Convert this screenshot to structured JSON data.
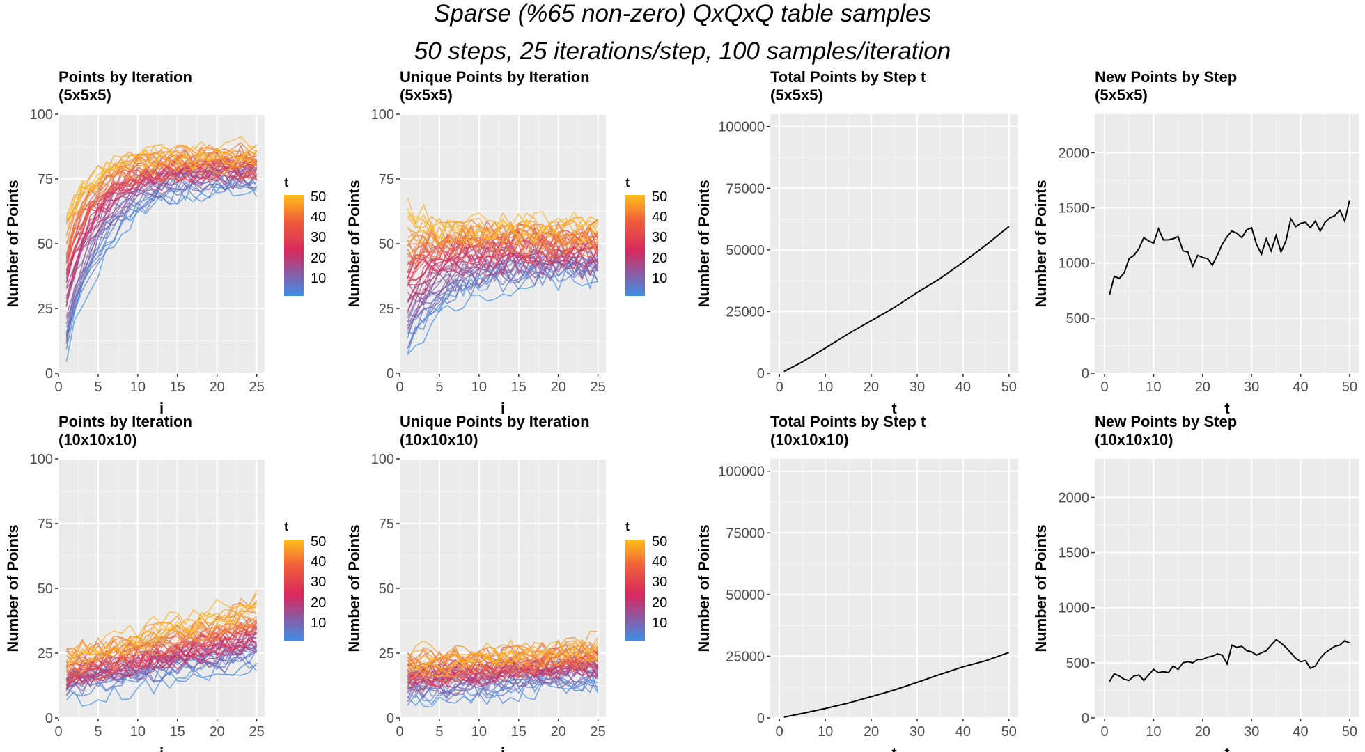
{
  "figure": {
    "title_line1": "Sparse (%65 non-zero) QxQxQ table samples",
    "title_line2": "50 steps, 25 iterations/step, 100 samples/iteration"
  },
  "colors": {
    "panel_bg": "#ebebeb",
    "grid": "#ffffff",
    "line": "#000000",
    "gradient_low": "#3f8ee6",
    "gradient_mid": "#d8285e",
    "gradient_high": "#ffbf1a"
  },
  "legend": {
    "title": "t",
    "labels": [
      "50",
      "40",
      "30",
      "20",
      "10"
    ]
  },
  "chart_data": [
    {
      "id": "p1",
      "type": "line",
      "multi_series": true,
      "title_line1": "Points by Iteration",
      "title_line2": "(5x5x5)",
      "xlabel": "i",
      "ylabel": "Number of Points",
      "xlim": [
        0,
        26
      ],
      "ylim": [
        0,
        100
      ],
      "xticks": [
        0,
        5,
        10,
        15,
        20,
        25
      ],
      "yticks": [
        0,
        25,
        50,
        75,
        100
      ],
      "series_color_by": "t",
      "series_count": 50,
      "x_range": [
        1,
        25
      ],
      "start_low_t": 10,
      "start_high_t": 62,
      "end_low_t": 74,
      "end_high_t": 85,
      "speed": 4.5,
      "noise": 4
    },
    {
      "id": "p2",
      "type": "line",
      "multi_series": true,
      "title_line1": "Unique Points by Iteration",
      "title_line2": "(5x5x5)",
      "xlabel": "i",
      "ylabel": "Number of Points",
      "xlim": [
        0,
        26
      ],
      "ylim": [
        0,
        100
      ],
      "xticks": [
        0,
        5,
        10,
        15,
        20,
        25
      ],
      "yticks": [
        0,
        25,
        50,
        75,
        100
      ],
      "series_color_by": "t",
      "series_count": 50,
      "x_range": [
        1,
        25
      ],
      "start_low_t": 10,
      "start_high_t": 62,
      "end_low_t": 40,
      "end_high_t": 57,
      "speed": 5,
      "noise": 5
    },
    {
      "id": "p3",
      "type": "line",
      "title_line1": "Total Points by Step t",
      "title_line2": "(5x5x5)",
      "xlabel": "t",
      "ylabel": "Number of Points",
      "xlim": [
        -2,
        52
      ],
      "ylim": [
        0,
        105000
      ],
      "xticks": [
        0,
        10,
        20,
        30,
        40,
        50
      ],
      "yticks": [
        0,
        25000,
        50000,
        75000,
        100000
      ],
      "x": [
        1,
        5,
        10,
        15,
        20,
        25,
        30,
        35,
        40,
        45,
        50
      ],
      "y": [
        700,
        4600,
        10200,
        16000,
        21300,
        26600,
        32700,
        38400,
        45000,
        52000,
        59500
      ]
    },
    {
      "id": "p4",
      "type": "line",
      "title_line1": "New Points by Step",
      "title_line2": "(5x5x5)",
      "xlabel": "t",
      "ylabel": "Number of Points",
      "xlim": [
        -2,
        52
      ],
      "ylim": [
        0,
        2350
      ],
      "xticks": [
        0,
        10,
        20,
        30,
        40,
        50
      ],
      "yticks": [
        0,
        500,
        1000,
        1500,
        2000
      ],
      "x": [
        1,
        2,
        3,
        4,
        5,
        6,
        7,
        8,
        9,
        10,
        11,
        12,
        13,
        14,
        15,
        16,
        17,
        18,
        19,
        20,
        21,
        22,
        23,
        24,
        25,
        26,
        27,
        28,
        29,
        30,
        31,
        32,
        33,
        34,
        35,
        36,
        37,
        38,
        39,
        40,
        41,
        42,
        43,
        44,
        45,
        46,
        47,
        48,
        49,
        50
      ],
      "y": [
        710,
        880,
        860,
        910,
        1040,
        1070,
        1130,
        1230,
        1200,
        1180,
        1310,
        1210,
        1210,
        1220,
        1240,
        1110,
        1100,
        970,
        1070,
        1050,
        1040,
        980,
        1070,
        1170,
        1240,
        1290,
        1270,
        1230,
        1300,
        1320,
        1170,
        1080,
        1220,
        1110,
        1250,
        1100,
        1200,
        1400,
        1330,
        1360,
        1370,
        1320,
        1380,
        1290,
        1370,
        1410,
        1430,
        1480,
        1380,
        1570
      ]
    },
    {
      "id": "p5",
      "type": "line",
      "multi_series": true,
      "title_line1": "Points by Iteration",
      "title_line2": "(10x10x10)",
      "xlabel": "i",
      "ylabel": "Number of Points",
      "xlim": [
        0,
        26
      ],
      "ylim": [
        0,
        100
      ],
      "xticks": [
        0,
        5,
        10,
        15,
        20,
        25
      ],
      "yticks": [
        0,
        25,
        50,
        75,
        100
      ],
      "series_color_by": "t",
      "series_count": 50,
      "x_range": [
        1,
        25
      ],
      "start_low_t": 11,
      "start_high_t": 24,
      "end_low_t": 22,
      "end_high_t": 44,
      "speed": 0,
      "noise": 4
    },
    {
      "id": "p6",
      "type": "line",
      "multi_series": true,
      "title_line1": "Unique Points by Iteration",
      "title_line2": "(10x10x10)",
      "xlabel": "i",
      "ylabel": "Number of Points",
      "xlim": [
        0,
        26
      ],
      "ylim": [
        0,
        100
      ],
      "xticks": [
        0,
        5,
        10,
        15,
        20,
        25
      ],
      "yticks": [
        0,
        25,
        50,
        75,
        100
      ],
      "series_color_by": "t",
      "series_count": 50,
      "x_range": [
        1,
        25
      ],
      "start_low_t": 10,
      "start_high_t": 22,
      "end_low_t": 16,
      "end_high_t": 28,
      "speed": 0,
      "noise": 4
    },
    {
      "id": "p7",
      "type": "line",
      "title_line1": "Total Points by Step t",
      "title_line2": "(10x10x10)",
      "xlabel": "t",
      "ylabel": "Number of Points",
      "xlim": [
        -2,
        52
      ],
      "ylim": [
        0,
        105000
      ],
      "xticks": [
        0,
        10,
        20,
        30,
        40,
        50
      ],
      "yticks": [
        0,
        25000,
        50000,
        75000,
        100000
      ],
      "x": [
        1,
        5,
        10,
        15,
        20,
        25,
        30,
        35,
        40,
        45,
        50
      ],
      "y": [
        300,
        1800,
        3800,
        6000,
        8600,
        11300,
        14400,
        17600,
        20700,
        23200,
        26500
      ]
    },
    {
      "id": "p8",
      "type": "line",
      "title_line1": "New Points by Step",
      "title_line2": "(10x10x10)",
      "xlabel": "t",
      "ylabel": "Number of Points",
      "xlim": [
        -2,
        52
      ],
      "ylim": [
        0,
        2350
      ],
      "xticks": [
        0,
        10,
        20,
        30,
        40,
        50
      ],
      "yticks": [
        0,
        500,
        1000,
        1500,
        2000
      ],
      "x": [
        1,
        2,
        3,
        4,
        5,
        6,
        7,
        8,
        9,
        10,
        11,
        12,
        13,
        14,
        15,
        16,
        17,
        18,
        19,
        20,
        21,
        22,
        23,
        24,
        25,
        26,
        27,
        28,
        29,
        30,
        31,
        32,
        33,
        34,
        35,
        36,
        37,
        38,
        39,
        40,
        41,
        42,
        43,
        44,
        45,
        46,
        47,
        48,
        49,
        50
      ],
      "y": [
        330,
        400,
        380,
        350,
        340,
        380,
        390,
        340,
        390,
        440,
        410,
        420,
        410,
        470,
        440,
        500,
        510,
        500,
        530,
        530,
        550,
        560,
        580,
        570,
        490,
        660,
        640,
        650,
        610,
        600,
        570,
        590,
        610,
        660,
        710,
        680,
        640,
        590,
        540,
        510,
        520,
        450,
        470,
        540,
        590,
        620,
        650,
        660,
        700,
        680
      ]
    }
  ]
}
